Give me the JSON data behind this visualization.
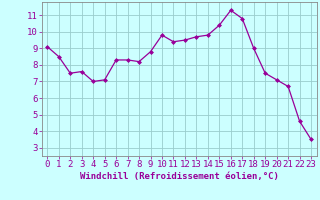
{
  "x": [
    0,
    1,
    2,
    3,
    4,
    5,
    6,
    7,
    8,
    9,
    10,
    11,
    12,
    13,
    14,
    15,
    16,
    17,
    18,
    19,
    20,
    21,
    22,
    23
  ],
  "y": [
    9.1,
    8.5,
    7.5,
    7.6,
    7.0,
    7.1,
    8.3,
    8.3,
    8.2,
    8.8,
    9.8,
    9.4,
    9.5,
    9.7,
    9.8,
    10.4,
    11.3,
    10.8,
    9.0,
    7.5,
    7.1,
    6.7,
    4.6,
    3.5
  ],
  "line_color": "#990099",
  "marker": "D",
  "marker_size": 2.0,
  "bg_color": "#ccffff",
  "grid_color": "#99cccc",
  "xlabel": "Windchill (Refroidissement éolien,°C)",
  "xlabel_color": "#990099",
  "tick_color": "#990099",
  "spine_color": "#888888",
  "yticks": [
    3,
    4,
    5,
    6,
    7,
    8,
    9,
    10,
    11
  ],
  "xlim": [
    -0.5,
    23.5
  ],
  "ylim": [
    2.5,
    11.8
  ],
  "font_size": 6.5,
  "label_font_size": 6.5,
  "linewidth": 0.9
}
